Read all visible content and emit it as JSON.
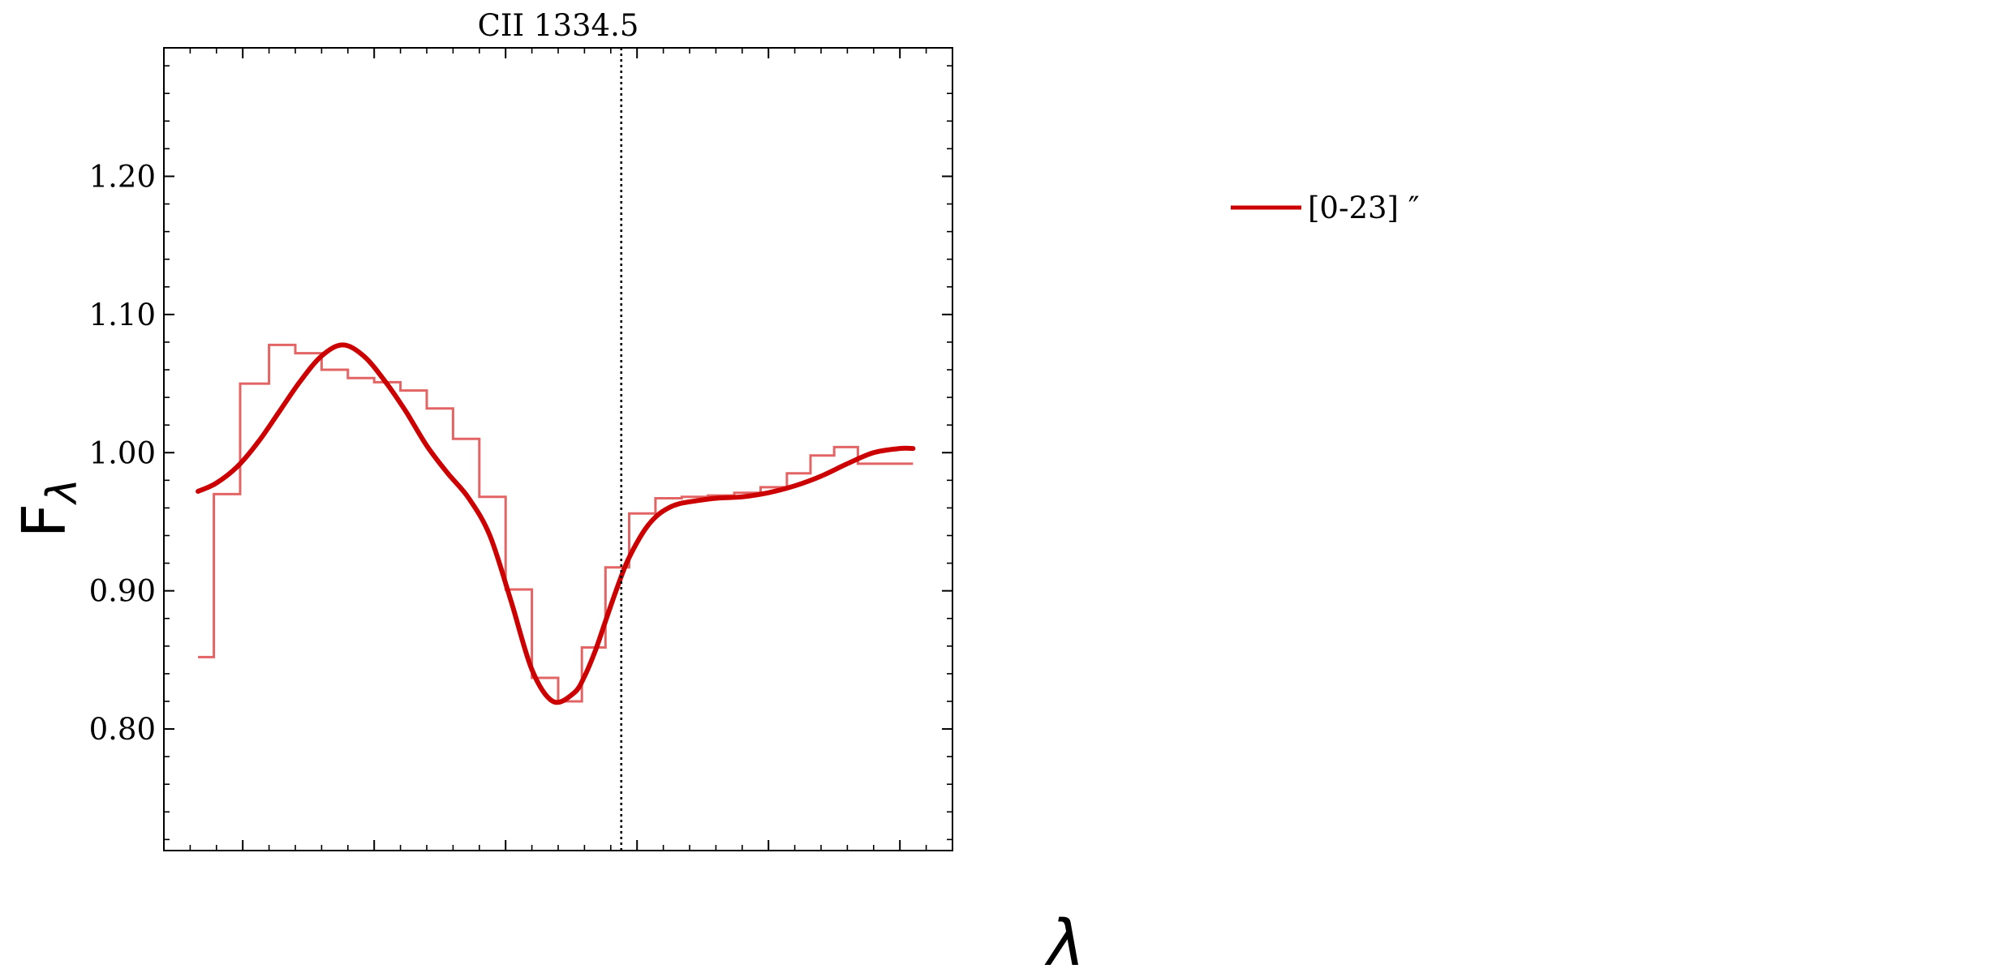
{
  "chart_data": {
    "type": "line",
    "title": "CII 1334.5",
    "xlabel": "λ",
    "ylabel": "F",
    "ylabel_subscript": "λ",
    "ylim": [
      0.712,
      1.293
    ],
    "xlim": [
      0,
      30
    ],
    "y_ticks": [
      0.8,
      0.9,
      1.0,
      1.1,
      1.2
    ],
    "y_tick_labels": [
      "0.80",
      "0.90",
      "1.00",
      "1.10",
      "1.20"
    ],
    "x_major_ticks": [
      3,
      8,
      13,
      18,
      23,
      28
    ],
    "show_x_tick_labels": false,
    "grid": false,
    "reference_line_x": 17.4,
    "legend": {
      "placement": "outside-right",
      "entries": [
        {
          "label": "[0-23] ″",
          "color": "#cc0000"
        }
      ]
    },
    "colors": {
      "model": "#cc0000",
      "data": "#e36464",
      "axis": "#000000",
      "reference_line": "#000000"
    },
    "series": [
      {
        "name": "[0-23] ″",
        "kind": "fit",
        "x": [
          1.3,
          2.0,
          2.8,
          3.6,
          4.4,
          5.2,
          6.0,
          6.8,
          7.6,
          8.4,
          9.2,
          10.0,
          10.8,
          11.6,
          12.4,
          13.2,
          14.0,
          14.8,
          15.6,
          16.0,
          16.4,
          16.8,
          17.2,
          17.6,
          18.0,
          18.4,
          18.8,
          19.2,
          19.6,
          20.2,
          21.0,
          22.0,
          23.0,
          24.0,
          25.0,
          26.0,
          27.0,
          28.0,
          28.5
        ],
        "y": [
          0.972,
          0.978,
          0.99,
          1.008,
          1.03,
          1.052,
          1.07,
          1.078,
          1.07,
          1.052,
          1.03,
          1.005,
          0.985,
          0.967,
          0.94,
          0.893,
          0.843,
          0.82,
          0.826,
          0.838,
          0.856,
          0.878,
          0.9,
          0.92,
          0.935,
          0.947,
          0.955,
          0.96,
          0.963,
          0.965,
          0.967,
          0.968,
          0.971,
          0.976,
          0.983,
          0.992,
          1.0,
          1.003,
          1.003
        ]
      },
      {
        "kind": "data",
        "bin_edges": [
          1.3,
          1.9,
          2.9,
          4.0,
          5.0,
          6.0,
          7.0,
          8.0,
          9.0,
          10.0,
          11.0,
          12.0,
          13.0,
          14.0,
          15.0,
          15.9,
          16.8,
          17.7,
          18.7,
          19.7,
          20.7,
          21.7,
          22.7,
          23.7,
          24.6,
          25.5,
          26.4,
          27.4,
          28.0,
          28.5
        ],
        "values": [
          0.852,
          0.97,
          1.05,
          1.078,
          1.072,
          1.06,
          1.054,
          1.051,
          1.045,
          1.032,
          1.01,
          0.968,
          0.901,
          0.837,
          0.82,
          0.859,
          0.917,
          0.956,
          0.967,
          0.968,
          0.969,
          0.971,
          0.975,
          0.985,
          0.998,
          1.004,
          0.992,
          0.992,
          0.992
        ]
      }
    ]
  }
}
